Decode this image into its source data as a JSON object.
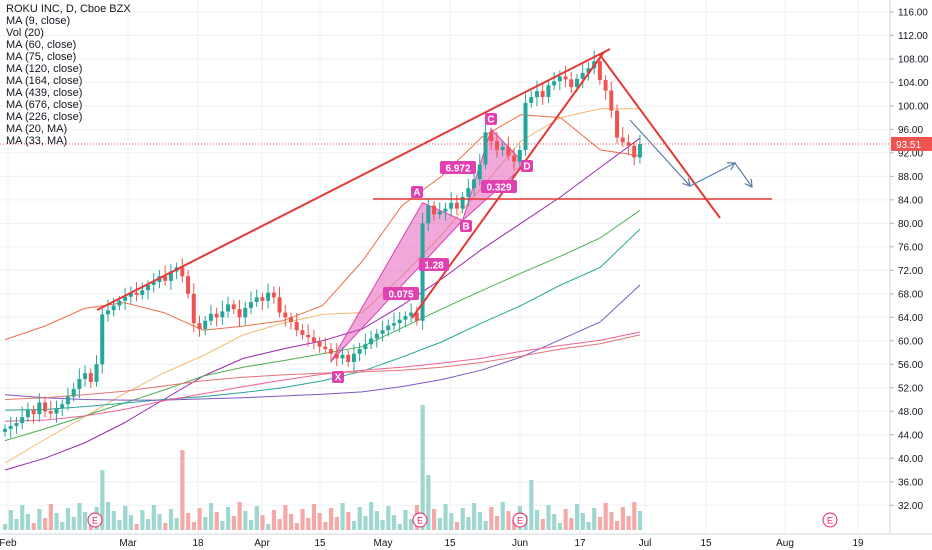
{
  "header": {
    "title": "ROKU INC, D, Cboe BZX",
    "indicators": [
      "MA (9, close)",
      "Vol (20)",
      "MA (60, close)",
      "MA (75, close)",
      "MA (120, close)",
      "MA (164, close)",
      "MA (439, close)",
      "MA (676, close)",
      "MA (226, close)",
      "MA (20, MA)",
      "MA (33, MA)"
    ]
  },
  "colors": {
    "up": "#26a69a",
    "down": "#ef5350",
    "trend": "#e53935",
    "pattern": "#e040b0",
    "projection": "#5b7fa6"
  },
  "chart_data": {
    "type": "candlestick",
    "y_axis": {
      "range": [
        30,
        117
      ],
      "ticks": [
        "116.00",
        "112.00",
        "108.00",
        "104.00",
        "100.00",
        "96.00",
        "92.00",
        "88.00",
        "84.00",
        "80.00",
        "76.00",
        "72.00",
        "68.00",
        "64.00",
        "60.00",
        "56.00",
        "52.00",
        "48.00",
        "44.00",
        "40.00",
        "36.00",
        "32.00"
      ]
    },
    "x_axis": {
      "ticks": [
        "Feb",
        "Mar",
        "18",
        "Apr",
        "15",
        "May",
        "15",
        "Jun",
        "17",
        "Jul",
        "15",
        "Aug",
        "19"
      ]
    },
    "last_price": "93.51",
    "prices": [
      45,
      45.5,
      46,
      47,
      48.2,
      47.5,
      49.5,
      48,
      47.6,
      48.5,
      49.2,
      50.5,
      51.8,
      53.5,
      54.5,
      53,
      56,
      64.5,
      65.2,
      66,
      66.8,
      67.5,
      68.2,
      67.8,
      68.6,
      69.5,
      70,
      71,
      70.2,
      71.8,
      72.5,
      71,
      68,
      63,
      62,
      63.4,
      64.6,
      64,
      65,
      66.2,
      65.4,
      64,
      65.6,
      66.6,
      67.4,
      66.8,
      68.2,
      67.4,
      64.8,
      64,
      63.2,
      61.8,
      61,
      60.6,
      59.8,
      59,
      58.6,
      57.8,
      57,
      57.6,
      56.4,
      57.8,
      58.6,
      59.4,
      60.4,
      61.2,
      61.8,
      62.6,
      63,
      63.6,
      64.2,
      64.8,
      63.4,
      80,
      83,
      81.5,
      82,
      82.5,
      83.5,
      82.5,
      84.5,
      86,
      87.5,
      90,
      95.5,
      94,
      92.5,
      93,
      91.5,
      90.5,
      92.5,
      100.5,
      101.5,
      102.5,
      101.5,
      103.5,
      104.2,
      105,
      104.5,
      103.2,
      104.6,
      105.6,
      106.4,
      107.6,
      104.4,
      102.6,
      99.2,
      94.6,
      93.8,
      93.2,
      91.2,
      93.5
    ],
    "patterns": {
      "points": [
        "X",
        "A",
        "B",
        "C",
        "D"
      ],
      "ratios": [
        "0.075",
        "1.28",
        "6.972",
        "0.329"
      ]
    },
    "moving_averages": [
      {
        "values": [
          60.2,
          62.5,
          65.5,
          66.5,
          64.8,
          61.8,
          62.5,
          63.4,
          66,
          73.5,
          83,
          88,
          94.6,
          98.5,
          98,
          92.5,
          91.5
        ]
      },
      {
        "values": [
          39.2,
          43.2,
          47,
          51,
          54.5,
          57.5,
          61,
          63,
          64.5,
          64.8,
          71,
          78,
          86,
          94,
          98,
          99.5,
          99.5
        ]
      },
      {
        "values": [
          38,
          40,
          42.6,
          46,
          50,
          54,
          57,
          58.6,
          60,
          62,
          66,
          70.5,
          75.5,
          80,
          84.5,
          89.5,
          94.5
        ]
      },
      {
        "values": [
          43,
          45,
          47.2,
          49.4,
          51.6,
          54,
          55.5,
          56.6,
          57.8,
          59,
          62.2,
          65.4,
          68.5,
          71.5,
          74.4,
          77.5,
          82.2
        ]
      },
      {
        "values": [
          48.2,
          48.3,
          48.8,
          49.4,
          50,
          50.5,
          51.2,
          52,
          53.2,
          54.8,
          57.2,
          59.8,
          63,
          66,
          69.5,
          72.5,
          79
        ]
      },
      {
        "values": [
          50.8,
          50.3,
          50,
          49.9,
          49.9,
          50.1,
          50.3,
          50.6,
          50.9,
          51.3,
          52.2,
          53.4,
          55,
          57.2,
          60.2,
          63.2,
          69.5
        ]
      },
      {
        "values": [
          46.3,
          46.5,
          47.2,
          48.3,
          49.8,
          51,
          52.2,
          53.3,
          54.3,
          55,
          55.5,
          56.2,
          57,
          58.2,
          59.2,
          60.1,
          61.5
        ]
      },
      {
        "values": [
          50,
          50.3,
          50.8,
          51.4,
          52.3,
          53.2,
          53.8,
          54.2,
          54.5,
          54.7,
          55,
          55.5,
          56.3,
          57.4,
          58.6,
          59.5,
          61
        ]
      }
    ],
    "volume_spikes": [
      {
        "label": "E"
      },
      {
        "label": "E"
      },
      {
        "label": "E"
      },
      {
        "label": "E"
      }
    ]
  }
}
